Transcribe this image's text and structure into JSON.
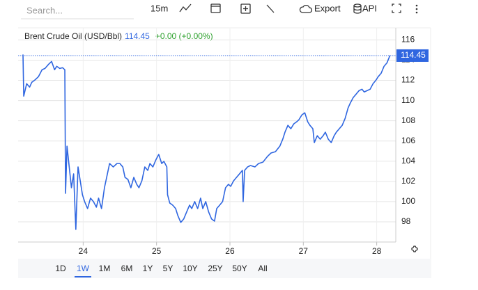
{
  "toolbar": {
    "search_placeholder": "Search...",
    "interval": "15m",
    "export": "Export",
    "api": "API"
  },
  "chart_data": {
    "type": "line",
    "title": "Brent Crude Oil (USD/Bbl)",
    "change": "+0.00 (+0.00%)",
    "series": [
      {
        "name": "Brent Crude Oil",
        "color": "#2f66e0",
        "x": [
          23.18,
          23.19,
          23.23,
          23.27,
          23.3,
          23.34,
          23.39,
          23.44,
          23.48,
          23.53,
          23.57,
          23.61,
          23.64,
          23.68,
          23.72,
          23.75,
          23.76,
          23.78,
          23.81,
          23.84,
          23.87,
          23.9,
          23.93,
          23.96,
          23.99,
          24.02,
          24.06,
          24.1,
          24.14,
          24.18,
          24.21,
          24.25,
          24.29,
          24.33,
          24.36,
          24.41,
          24.46,
          24.5,
          24.54,
          24.57,
          24.61,
          24.65,
          24.69,
          24.73,
          24.76,
          24.8,
          24.84,
          24.88,
          24.91,
          24.95,
          24.99,
          25.03,
          25.07,
          25.1,
          25.14,
          25.15,
          25.18,
          25.22,
          25.26,
          25.29,
          25.33,
          25.37,
          25.41,
          25.45,
          25.48,
          25.52,
          25.56,
          25.6,
          25.63,
          25.67,
          25.71,
          25.75,
          25.79,
          25.82,
          25.86,
          25.9,
          25.94,
          25.98,
          26.01,
          26.05,
          26.09,
          26.13,
          26.17,
          26.18,
          26.2,
          26.24,
          26.28,
          26.34,
          26.39,
          26.45,
          26.51,
          26.56,
          26.62,
          26.68,
          26.72,
          26.75,
          26.79,
          26.83,
          26.87,
          26.91,
          26.94,
          26.98,
          27.02,
          27.06,
          27.09,
          27.13,
          27.15,
          27.19,
          27.23,
          27.27,
          27.3,
          27.34,
          27.38,
          27.42,
          27.45,
          27.49,
          27.53,
          27.57,
          27.61,
          27.64,
          27.68,
          27.72,
          27.76,
          27.8,
          27.83,
          27.87,
          27.91,
          27.95,
          27.99,
          28.02,
          28.06,
          28.1,
          28.14,
          28.18
        ],
        "values": [
          114.56,
          110.44,
          111.67,
          111.33,
          111.81,
          112.02,
          112.36,
          113.05,
          113.18,
          113.6,
          113.87,
          113.05,
          113.39,
          113.18,
          113.25,
          113.05,
          100.82,
          105.49,
          103.43,
          101.37,
          102.74,
          97.25,
          103.43,
          102.06,
          100.68,
          100.0,
          99.31,
          100.34,
          100.0,
          99.45,
          100.34,
          99.31,
          101.37,
          102.74,
          103.77,
          103.43,
          103.77,
          103.77,
          103.43,
          102.4,
          102.19,
          101.37,
          102.4,
          101.71,
          101.37,
          102.06,
          103.43,
          103.09,
          103.77,
          103.43,
          104.12,
          104.67,
          103.77,
          103.98,
          103.43,
          100.68,
          99.86,
          99.65,
          99.31,
          98.62,
          97.94,
          98.28,
          98.97,
          99.65,
          99.31,
          100.0,
          99.31,
          100.34,
          99.31,
          100.0,
          98.97,
          98.28,
          98.07,
          99.31,
          99.65,
          100.0,
          101.37,
          101.71,
          101.51,
          102.06,
          102.4,
          102.74,
          103.09,
          100.0,
          103.09,
          103.43,
          103.57,
          103.43,
          103.77,
          103.91,
          104.46,
          104.81,
          104.94,
          105.49,
          106.18,
          106.87,
          107.55,
          107.21,
          107.69,
          107.9,
          108.1,
          108.58,
          108.79,
          107.9,
          107.55,
          107.21,
          105.84,
          106.52,
          106.18,
          106.52,
          106.87,
          106.18,
          105.84,
          106.52,
          106.87,
          107.21,
          107.55,
          108.24,
          109.27,
          109.75,
          110.3,
          110.64,
          110.99,
          111.12,
          110.85,
          110.99,
          111.12,
          111.67,
          112.02,
          112.36,
          112.7,
          113.39,
          113.73,
          114.45
        ]
      }
    ],
    "xlim": [
      23.18,
      28.26
    ],
    "xticks": [
      24,
      25,
      26,
      27,
      28
    ],
    "ylim": [
      96,
      117.2
    ],
    "yticks": [
      98,
      100,
      102,
      104,
      106,
      108,
      110,
      112,
      114,
      116
    ],
    "grid": true
  },
  "ranges": [
    "1D",
    "1W",
    "1M",
    "6M",
    "1Y",
    "5Y",
    "10Y",
    "25Y",
    "50Y",
    "All"
  ],
  "selected_range": 1
}
